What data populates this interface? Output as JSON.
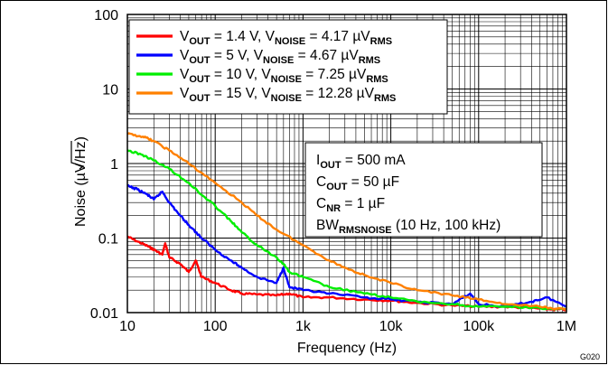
{
  "chart_data": {
    "type": "line",
    "xscale": "log",
    "yscale": "log",
    "xlim": [
      10,
      1000000
    ],
    "ylim": [
      0.01,
      100
    ],
    "xlabel": "Frequency (Hz)",
    "ylabel_main": "Noise (µV/",
    "ylabel_sqrt": "Hz",
    "ylabel_close": ")",
    "x_ticks": [
      {
        "value": 10,
        "label": "10"
      },
      {
        "value": 100,
        "label": "100"
      },
      {
        "value": 1000,
        "label": "1k"
      },
      {
        "value": 10000,
        "label": "10k"
      },
      {
        "value": 100000,
        "label": "100k"
      },
      {
        "value": 1000000,
        "label": "1M"
      }
    ],
    "y_ticks": [
      {
        "value": 0.01,
        "label": "0.01"
      },
      {
        "value": 0.1,
        "label": "0.1"
      },
      {
        "value": 1,
        "label": "1"
      },
      {
        "value": 10,
        "label": "10"
      },
      {
        "value": 100,
        "label": "100"
      }
    ],
    "grid": true,
    "legend_position": "top-left",
    "figure_id": "G020",
    "series": [
      {
        "name": "VOUT = 1.4 V, VNOISE = 4.17 µVRMS",
        "legend": {
          "v1": "V",
          "s1": "OUT",
          "t1": " = 1.4 V, V",
          "s2": "NOISE",
          "t2": " = 4.17 µV",
          "s3": "RMS"
        },
        "color": "#ff0000",
        "points": [
          [
            10,
            0.105
          ],
          [
            13,
            0.09
          ],
          [
            17,
            0.078
          ],
          [
            20,
            0.07
          ],
          [
            25,
            0.06
          ],
          [
            27,
            0.085
          ],
          [
            30,
            0.055
          ],
          [
            40,
            0.045
          ],
          [
            50,
            0.035
          ],
          [
            60,
            0.05
          ],
          [
            70,
            0.03
          ],
          [
            100,
            0.025
          ],
          [
            150,
            0.02
          ],
          [
            200,
            0.018
          ],
          [
            300,
            0.0175
          ],
          [
            500,
            0.017
          ],
          [
            700,
            0.018
          ],
          [
            1000,
            0.016
          ],
          [
            2000,
            0.016
          ],
          [
            5000,
            0.015
          ],
          [
            10000,
            0.0145
          ],
          [
            20000,
            0.0135
          ],
          [
            50000,
            0.0125
          ],
          [
            100000,
            0.012
          ],
          [
            200000,
            0.012
          ],
          [
            400000,
            0.0115
          ],
          [
            700000,
            0.011
          ],
          [
            1000000,
            0.011
          ]
        ]
      },
      {
        "name": "VOUT = 5 V, VNOISE = 4.67 µVRMS",
        "legend": {
          "v1": "V",
          "s1": "OUT",
          "t1": " = 5 V, V",
          "s2": "NOISE",
          "t2": " = 4.67 µV",
          "s3": "RMS"
        },
        "color": "#0000ff",
        "points": [
          [
            10,
            0.5
          ],
          [
            13,
            0.45
          ],
          [
            17,
            0.38
          ],
          [
            20,
            0.33
          ],
          [
            25,
            0.42
          ],
          [
            30,
            0.3
          ],
          [
            40,
            0.2
          ],
          [
            50,
            0.15
          ],
          [
            70,
            0.1
          ],
          [
            100,
            0.07
          ],
          [
            150,
            0.05
          ],
          [
            200,
            0.04
          ],
          [
            300,
            0.03
          ],
          [
            500,
            0.025
          ],
          [
            600,
            0.04
          ],
          [
            700,
            0.022
          ],
          [
            1000,
            0.02
          ],
          [
            2000,
            0.018
          ],
          [
            5000,
            0.016
          ],
          [
            10000,
            0.015
          ],
          [
            20000,
            0.014
          ],
          [
            50000,
            0.013
          ],
          [
            80000,
            0.018
          ],
          [
            100000,
            0.013
          ],
          [
            200000,
            0.012
          ],
          [
            400000,
            0.014
          ],
          [
            600000,
            0.016
          ],
          [
            1000000,
            0.012
          ]
        ]
      },
      {
        "name": "VOUT = 10 V, VNOISE = 7.25 µVRMS",
        "legend": {
          "v1": "V",
          "s1": "OUT",
          "t1": " = 10 V, V",
          "s2": "NOISE",
          "t2": " = 7.25 µV",
          "s3": "RMS"
        },
        "color": "#00ee00",
        "points": [
          [
            10,
            1.5
          ],
          [
            15,
            1.3
          ],
          [
            20,
            1.1
          ],
          [
            30,
            0.85
          ],
          [
            50,
            0.55
          ],
          [
            70,
            0.38
          ],
          [
            100,
            0.27
          ],
          [
            150,
            0.17
          ],
          [
            200,
            0.12
          ],
          [
            300,
            0.08
          ],
          [
            500,
            0.055
          ],
          [
            600,
            0.045
          ],
          [
            700,
            0.035
          ],
          [
            1000,
            0.03
          ],
          [
            2000,
            0.022
          ],
          [
            5000,
            0.018
          ],
          [
            10000,
            0.016
          ],
          [
            20000,
            0.014
          ],
          [
            50000,
            0.013
          ],
          [
            100000,
            0.012
          ],
          [
            200000,
            0.012
          ],
          [
            500000,
            0.0115
          ],
          [
            1000000,
            0.011
          ]
        ]
      },
      {
        "name": "VOUT = 15 V, VNOISE = 12.28 µVRMS",
        "legend": {
          "v1": "V",
          "s1": "OUT",
          "t1": " = 15 V, V",
          "s2": "NOISE",
          "t2": " = 12.28 µV",
          "s3": "RMS"
        },
        "color": "#ff8000",
        "points": [
          [
            10,
            2.5
          ],
          [
            15,
            2.3
          ],
          [
            20,
            2
          ],
          [
            30,
            1.5
          ],
          [
            50,
            1
          ],
          [
            100,
            0.55
          ],
          [
            200,
            0.3
          ],
          [
            300,
            0.2
          ],
          [
            500,
            0.13
          ],
          [
            1000,
            0.08
          ],
          [
            2000,
            0.05
          ],
          [
            3000,
            0.04
          ],
          [
            5000,
            0.032
          ],
          [
            10000,
            0.025
          ],
          [
            20000,
            0.02
          ],
          [
            50000,
            0.017
          ],
          [
            100000,
            0.015
          ],
          [
            200000,
            0.013
          ],
          [
            500000,
            0.012
          ],
          [
            1000000,
            0.011
          ]
        ]
      }
    ],
    "conditions": [
      {
        "a": "I",
        "s": "OUT",
        "b": " = 500 mA"
      },
      {
        "a": "C",
        "s": "OUT",
        "b": " = 50 µF"
      },
      {
        "a": "C",
        "s": "NR",
        "b": " = 1 µF"
      },
      {
        "a": "BW",
        "s": "RMSNOISE",
        "b": " (10 Hz, 100 kHz)"
      }
    ]
  }
}
